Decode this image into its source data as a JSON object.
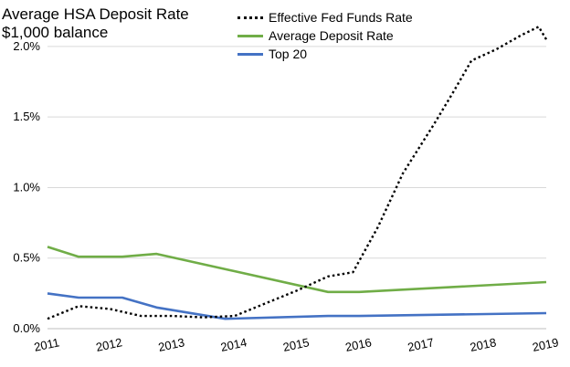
{
  "title": "Average HSA Deposit Rate",
  "subtitle": "$1,000 balance",
  "chart_data": {
    "type": "line",
    "title": "Average HSA Deposit Rate",
    "subtitle": "$1,000 balance",
    "xlim": [
      2011,
      2019
    ],
    "ylim": [
      0,
      0.022
    ],
    "y_ticks": [
      0,
      0.005,
      0.01,
      0.015,
      0.02
    ],
    "y_tick_labels": [
      "0.0%",
      "0.5%",
      "1.0%",
      "1.5%",
      "2.0%"
    ],
    "x_ticks": [
      2011,
      2012,
      2013,
      2014,
      2015,
      2016,
      2017,
      2018,
      2019
    ],
    "x_tick_labels": [
      "2011",
      "2012",
      "2013",
      "2014",
      "2015",
      "2016",
      "2017",
      "2018",
      "2019"
    ],
    "grid": true,
    "legend_position": "top",
    "series": [
      {
        "name": "Effective Fed Funds Rate",
        "color": "#000000",
        "style": "dotted",
        "points": [
          [
            2011.0,
            0.0007
          ],
          [
            2011.5,
            0.0016
          ],
          [
            2012.0,
            0.0014
          ],
          [
            2012.5,
            0.0009
          ],
          [
            2013.0,
            0.0009
          ],
          [
            2013.5,
            0.0008
          ],
          [
            2014.0,
            0.0009
          ],
          [
            2014.5,
            0.0018
          ],
          [
            2015.0,
            0.0027
          ],
          [
            2015.5,
            0.0037
          ],
          [
            2015.9,
            0.004
          ],
          [
            2016.3,
            0.0072
          ],
          [
            2016.7,
            0.011
          ],
          [
            2017.2,
            0.0145
          ],
          [
            2017.5,
            0.0167
          ],
          [
            2017.8,
            0.019
          ],
          [
            2018.2,
            0.0198
          ],
          [
            2018.6,
            0.0208
          ],
          [
            2018.88,
            0.0214
          ],
          [
            2019.0,
            0.0205
          ]
        ]
      },
      {
        "name": "Average Deposit Rate",
        "color": "#70ad47",
        "style": "solid",
        "points": [
          [
            2011.0,
            0.0058
          ],
          [
            2011.5,
            0.0051
          ],
          [
            2012.2,
            0.0051
          ],
          [
            2012.75,
            0.0053
          ],
          [
            2015.5,
            0.0026
          ],
          [
            2016.0,
            0.0026
          ],
          [
            2019.0,
            0.0033
          ]
        ]
      },
      {
        "name": "Top 20",
        "color": "#4472c4",
        "style": "solid",
        "points": [
          [
            2011.0,
            0.0025
          ],
          [
            2011.5,
            0.0022
          ],
          [
            2012.2,
            0.0022
          ],
          [
            2012.75,
            0.0015
          ],
          [
            2013.85,
            0.0007
          ],
          [
            2015.5,
            0.0009
          ],
          [
            2016.0,
            0.0009
          ],
          [
            2019.0,
            0.0011
          ]
        ]
      }
    ]
  }
}
